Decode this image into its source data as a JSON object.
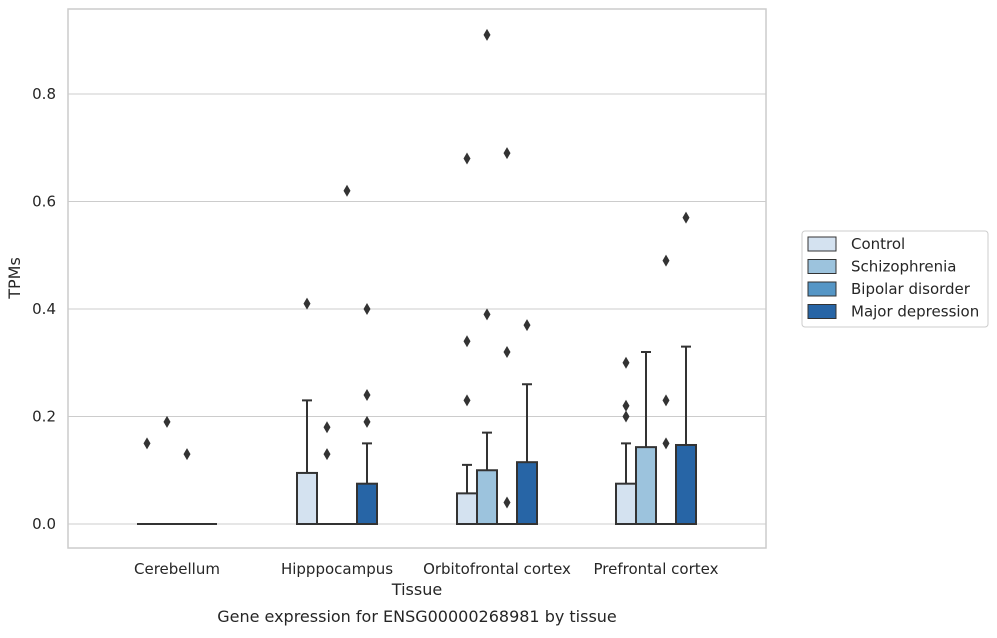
{
  "chart_data": {
    "type": "box",
    "title": "",
    "caption": "Gene expression for ENSG00000268981 by tissue",
    "xlabel": "Tissue",
    "ylabel": "TPMs",
    "ylim": [
      -0.045,
      0.96
    ],
    "yticks": [
      0.0,
      0.2,
      0.4,
      0.6,
      0.8
    ],
    "ytick_labels": [
      "0.0",
      "0.2",
      "0.4",
      "0.6",
      "0.8"
    ],
    "grid": "horizontal",
    "legend_position": "right",
    "categories": [
      "Cerebellum",
      "Hipppocampus",
      "Orbitofrontal cortex",
      "Prefrontal cortex"
    ],
    "series": [
      {
        "name": "Control",
        "color": "#d4e2f0",
        "boxes": [
          {
            "q1": 0,
            "median": 0,
            "q3": 0,
            "whisker_low": 0,
            "whisker_high": 0,
            "fliers": [
              0.15
            ]
          },
          {
            "q1": 0,
            "median": 0,
            "q3": 0.095,
            "whisker_low": 0,
            "whisker_high": 0.23,
            "fliers": [
              0.41
            ]
          },
          {
            "q1": 0,
            "median": 0,
            "q3": 0.057,
            "whisker_low": 0,
            "whisker_high": 0.11,
            "fliers": [
              0.23,
              0.34,
              0.68
            ]
          },
          {
            "q1": 0,
            "median": 0,
            "q3": 0.075,
            "whisker_low": 0,
            "whisker_high": 0.15,
            "fliers": [
              0.2,
              0.22,
              0.3
            ]
          }
        ]
      },
      {
        "name": "Schizophrenia",
        "color": "#9cc3dd",
        "boxes": [
          {
            "q1": 0,
            "median": 0,
            "q3": 0,
            "whisker_low": 0,
            "whisker_high": 0,
            "fliers": [
              0.19
            ]
          },
          {
            "q1": 0,
            "median": 0,
            "q3": 0,
            "whisker_low": 0,
            "whisker_high": 0,
            "fliers": [
              0.13,
              0.18
            ]
          },
          {
            "q1": 0,
            "median": 0,
            "q3": 0.1,
            "whisker_low": 0,
            "whisker_high": 0.17,
            "fliers": [
              0.39,
              0.91
            ]
          },
          {
            "q1": 0,
            "median": 0,
            "q3": 0.143,
            "whisker_low": 0,
            "whisker_high": 0.32,
            "fliers": []
          }
        ]
      },
      {
        "name": "Bipolar disorder",
        "color": "#5596c6",
        "boxes": [
          {
            "q1": 0,
            "median": 0,
            "q3": 0,
            "whisker_low": 0,
            "whisker_high": 0,
            "fliers": [
              0.13
            ]
          },
          {
            "q1": 0,
            "median": 0,
            "q3": 0,
            "whisker_low": 0,
            "whisker_high": 0,
            "fliers": [
              0.62
            ]
          },
          {
            "q1": 0,
            "median": 0,
            "q3": 0,
            "whisker_low": 0,
            "whisker_high": 0,
            "fliers": [
              0.04,
              0.32,
              0.69
            ]
          },
          {
            "q1": 0,
            "median": 0,
            "q3": 0,
            "whisker_low": 0,
            "whisker_high": 0,
            "fliers": [
              0.15,
              0.23,
              0.49
            ]
          }
        ]
      },
      {
        "name": "Major depression",
        "color": "#2765a6",
        "boxes": [
          {
            "q1": 0,
            "median": 0,
            "q3": 0,
            "whisker_low": 0,
            "whisker_high": 0,
            "fliers": []
          },
          {
            "q1": 0,
            "median": 0,
            "q3": 0.075,
            "whisker_low": 0,
            "whisker_high": 0.15,
            "fliers": [
              0.19,
              0.24,
              0.4
            ]
          },
          {
            "q1": 0,
            "median": 0,
            "q3": 0.115,
            "whisker_low": 0,
            "whisker_high": 0.26,
            "fliers": [
              0.37
            ]
          },
          {
            "q1": 0,
            "median": 0,
            "q3": 0.147,
            "whisker_low": 0,
            "whisker_high": 0.33,
            "fliers": [
              0.57
            ]
          }
        ]
      }
    ]
  }
}
